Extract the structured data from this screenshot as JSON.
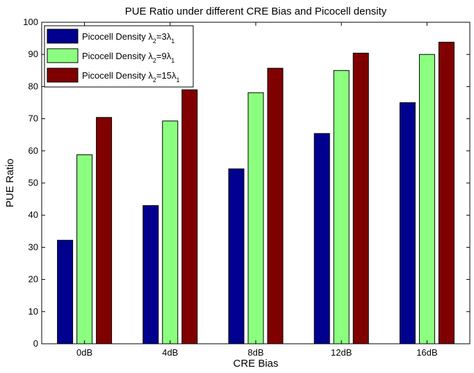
{
  "chart_data": {
    "type": "bar",
    "title": "PUE Ratio under different CRE Bias and Picocell density",
    "xlabel": "CRE Bias",
    "ylabel": "PUE Ratio",
    "categories": [
      "0dB",
      "4dB",
      "8dB",
      "12dB",
      "16dB"
    ],
    "ylim": [
      0,
      100
    ],
    "yticks": [
      0,
      10,
      20,
      30,
      40,
      50,
      60,
      70,
      80,
      90,
      100
    ],
    "grid": false,
    "legend_position": "top-left",
    "series": [
      {
        "name": "Picocell Density λ2=3λ1",
        "name_parts": {
          "prefix": "Picocell Density λ",
          "sub1": "2",
          "mid": "=3λ",
          "sub2": "1"
        },
        "color": "#00008f",
        "values": [
          32.2,
          43.0,
          54.4,
          65.4,
          75.0
        ]
      },
      {
        "name": "Picocell Density λ2=9λ1",
        "name_parts": {
          "prefix": "Picocell Density λ",
          "sub1": "2",
          "mid": "=9λ",
          "sub2": "1"
        },
        "color": "#8cff80",
        "values": [
          58.8,
          69.3,
          78.1,
          85.0,
          90.0
        ]
      },
      {
        "name": "Picocell Density λ2=15λ1",
        "name_parts": {
          "prefix": "Picocell Density λ",
          "sub1": "2",
          "mid": "=15λ",
          "sub2": "1"
        },
        "color": "#800000",
        "values": [
          70.4,
          79.0,
          85.7,
          90.4,
          93.8
        ]
      }
    ]
  }
}
